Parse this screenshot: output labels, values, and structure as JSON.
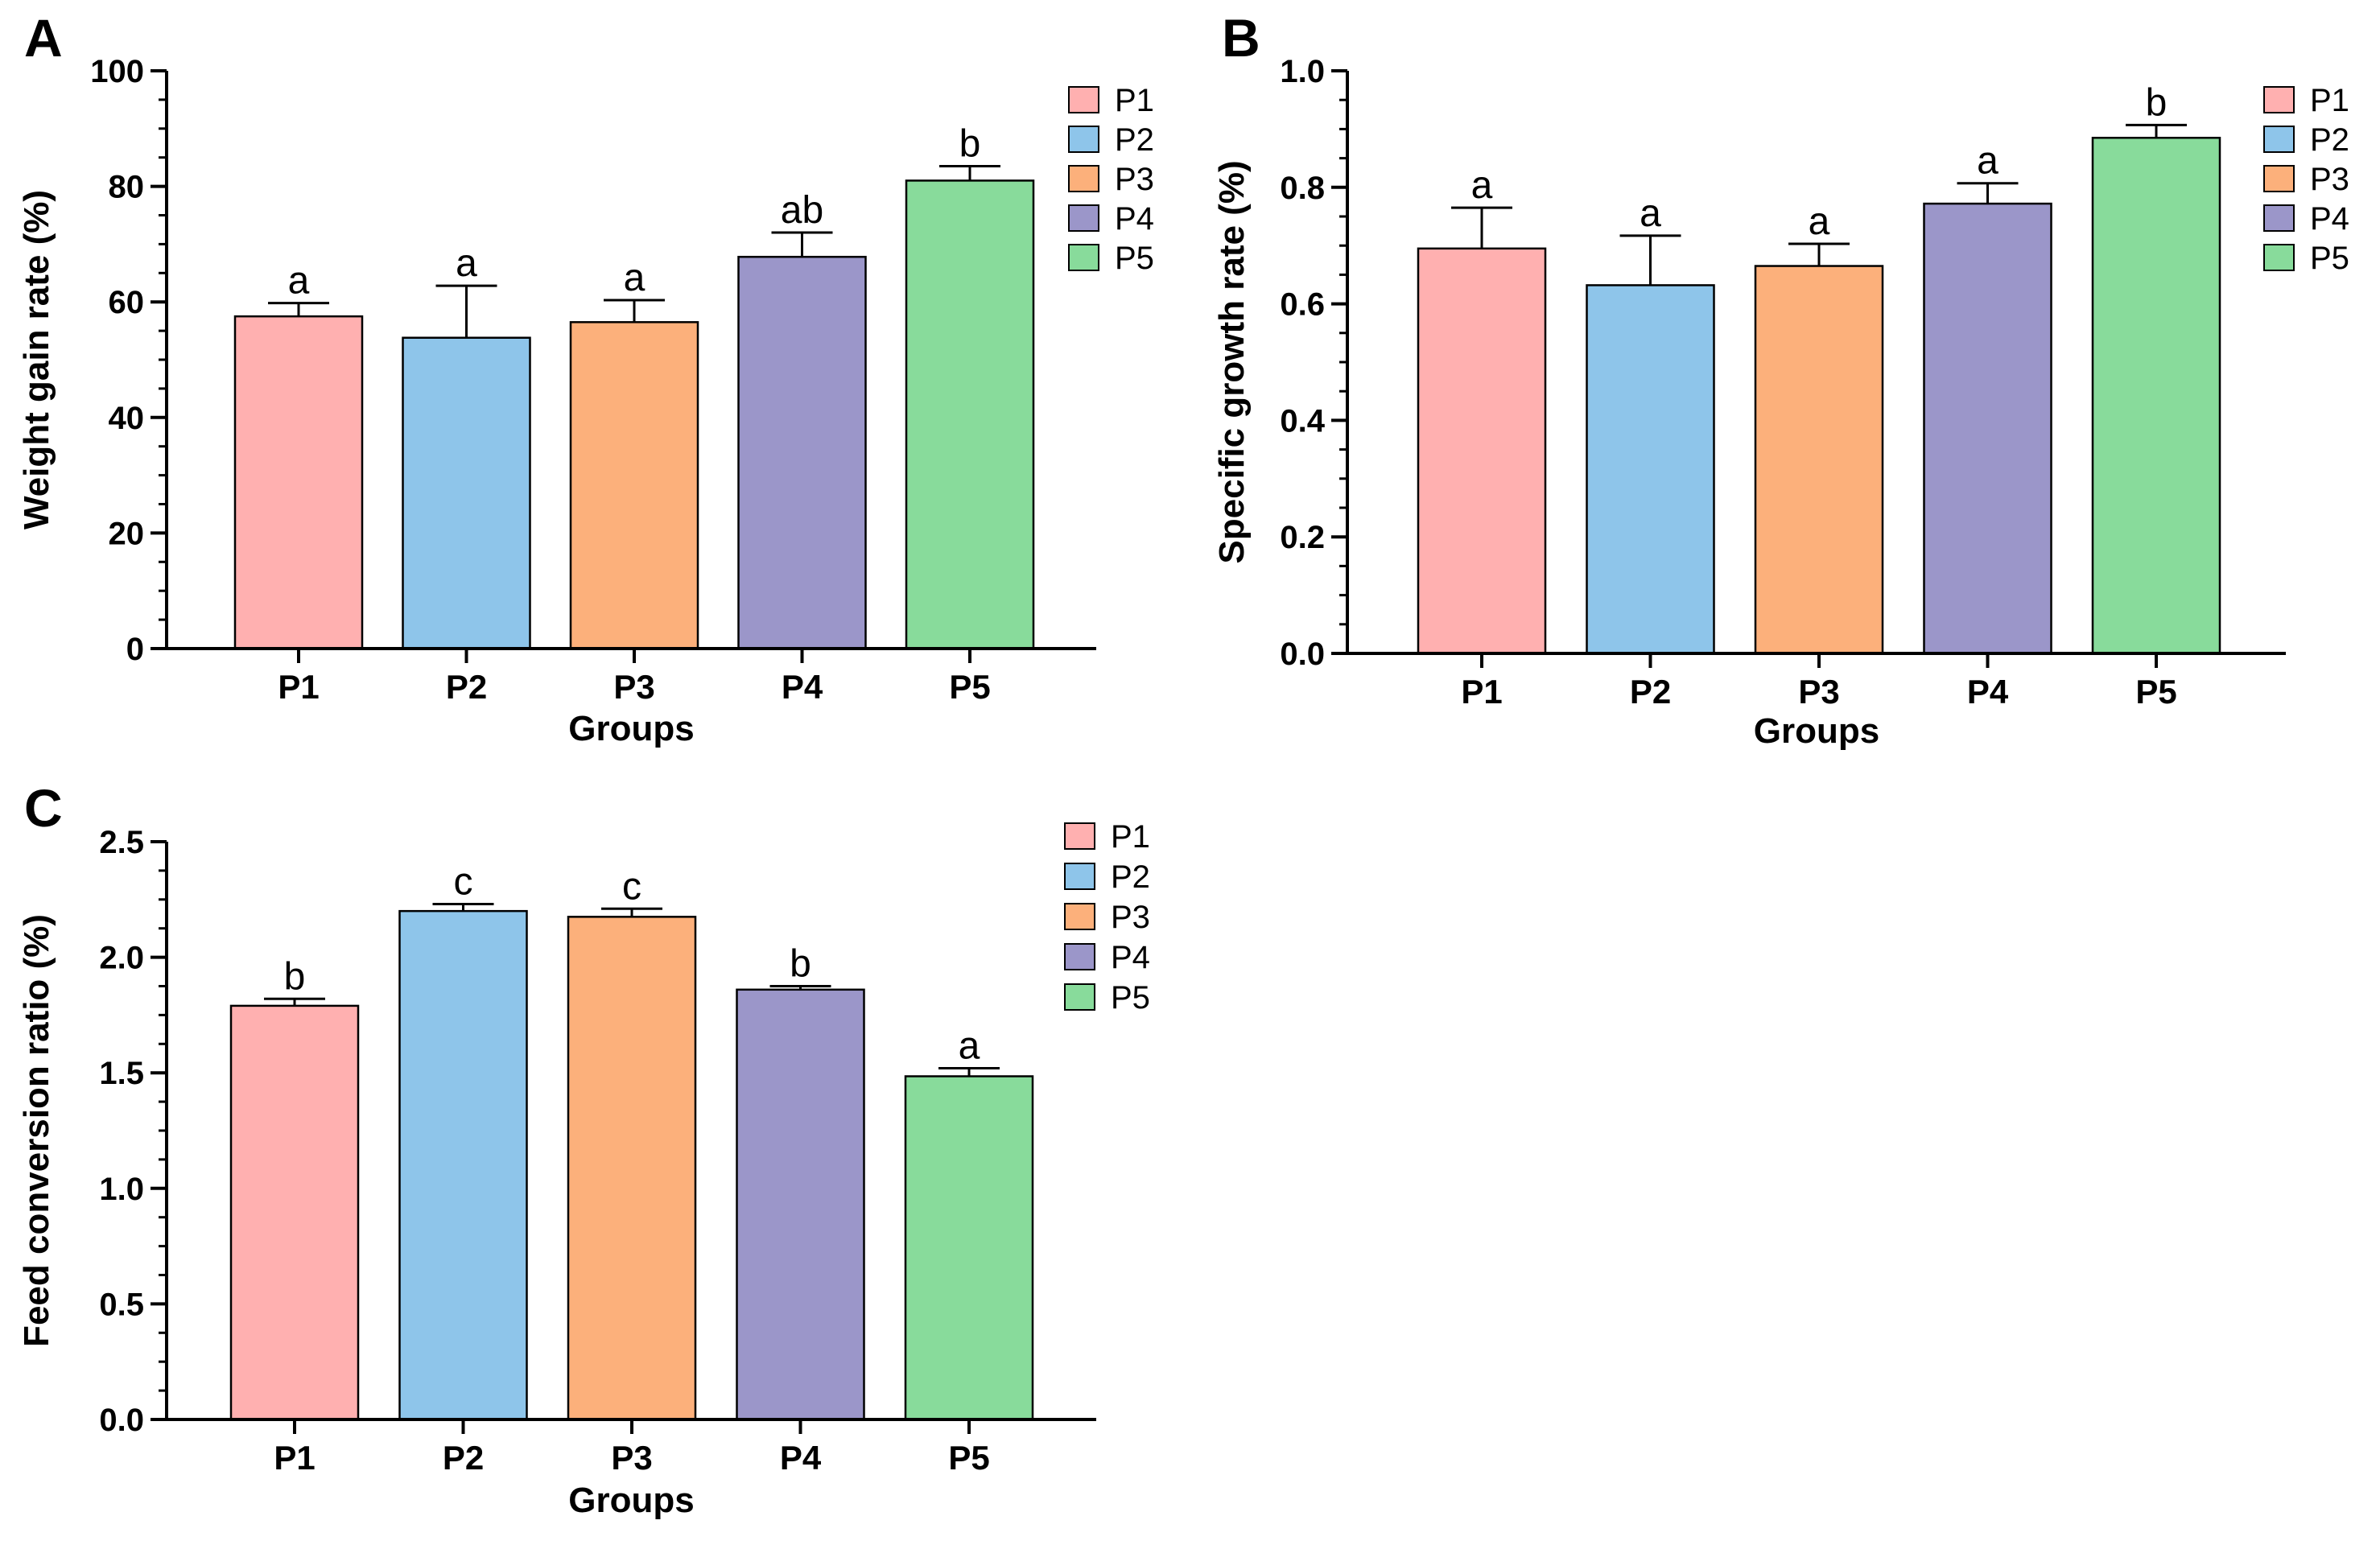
{
  "chart_data": [
    {
      "panel": "A",
      "type": "bar",
      "categories": [
        "P1",
        "P2",
        "P3",
        "P4",
        "P5"
      ],
      "values": [
        57.5,
        53.8,
        56.5,
        67.8,
        81.0
      ],
      "errors": [
        2.3,
        9.0,
        3.8,
        4.2,
        2.5
      ],
      "significance": [
        "a",
        "a",
        "a",
        "ab",
        "b"
      ],
      "colors": [
        "#ffb0b0",
        "#8ec5ea",
        "#fcb07b",
        "#9b96c9",
        "#88db9b"
      ],
      "ylabel": "Weight gain rate (%)",
      "xlabel": "Groups",
      "ylim": [
        0,
        100
      ],
      "yticks": [
        "0",
        "20",
        "40",
        "60",
        "80",
        "100"
      ],
      "legend": [
        "P1",
        "P2",
        "P3",
        "P4",
        "P5"
      ],
      "legend_position": "top-right"
    },
    {
      "panel": "B",
      "type": "bar",
      "categories": [
        "P1",
        "P2",
        "P3",
        "P4",
        "P5"
      ],
      "values": [
        0.695,
        0.632,
        0.665,
        0.772,
        0.885
      ],
      "errors": [
        0.07,
        0.085,
        0.038,
        0.035,
        0.022
      ],
      "significance": [
        "a",
        "a",
        "a",
        "a",
        "b"
      ],
      "colors": [
        "#ffb0b0",
        "#8ec5ea",
        "#fcb07b",
        "#9b96c9",
        "#88db9b"
      ],
      "ylabel": "Specific growth rate (%)",
      "xlabel": "Groups",
      "ylim": [
        0,
        1.0
      ],
      "yticks": [
        "0.0",
        "0.2",
        "0.4",
        "0.6",
        "0.8",
        "1.0"
      ],
      "legend": [
        "P1",
        "P2",
        "P3",
        "P4",
        "P5"
      ],
      "legend_position": "top-right"
    },
    {
      "panel": "C",
      "type": "bar",
      "categories": [
        "P1",
        "P2",
        "P3",
        "P4",
        "P5"
      ],
      "values": [
        1.79,
        2.2,
        2.175,
        1.86,
        1.485
      ],
      "errors": [
        0.03,
        0.03,
        0.035,
        0.015,
        0.035
      ],
      "significance": [
        "b",
        "c",
        "c",
        "b",
        "a"
      ],
      "colors": [
        "#ffb0b0",
        "#8ec5ea",
        "#fcb07b",
        "#9b96c9",
        "#88db9b"
      ],
      "ylabel": "Feed conversion ratio (%)",
      "xlabel": "Groups",
      "ylim": [
        0,
        2.5
      ],
      "yticks": [
        "0.0",
        "0.5",
        "1.0",
        "1.5",
        "2.0",
        "2.5"
      ],
      "legend": [
        "P1",
        "P2",
        "P3",
        "P4",
        "P5"
      ],
      "legend_position": "top-right"
    }
  ]
}
